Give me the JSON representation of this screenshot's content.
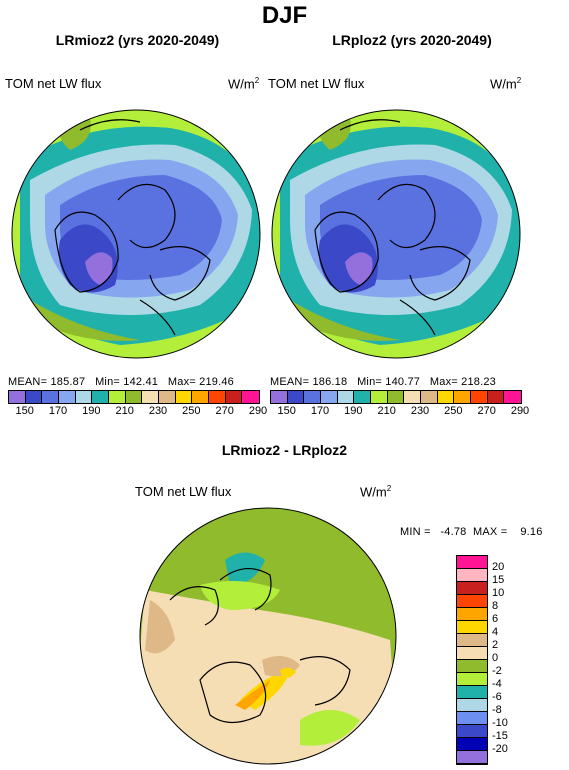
{
  "page_title": "DJF",
  "panels": [
    {
      "title": "LRmioz2 (yrs 2020-2049)",
      "variable": "TOM net LW flux",
      "units": "W/m",
      "units_sup": "2",
      "stats": "MEAN= 185.87   Min= 142.41   Max= 219.46"
    },
    {
      "title": "LRploz2 (yrs 2020-2049)",
      "variable": "TOM net LW flux",
      "units": "W/m",
      "units_sup": "2",
      "stats": "MEAN= 186.18   Min= 140.77   Max= 218.23"
    }
  ],
  "top_colorbar": {
    "colors": [
      "#9370db",
      "#3b49c9",
      "#5a72e0",
      "#86a6ef",
      "#aed8e6",
      "#20b2aa",
      "#b3ee3a",
      "#8fbb2d",
      "#f5deb3",
      "#deb887",
      "#ffd700",
      "#ffa500",
      "#ff4500",
      "#c8201e",
      "#ff1493"
    ],
    "labels": [
      "150",
      "170",
      "190",
      "210",
      "230",
      "250",
      "270",
      "290"
    ]
  },
  "diff_panel": {
    "title": "LRmioz2 - LRploz2",
    "variable": "TOM net LW flux",
    "units": "W/m",
    "units_sup": "2",
    "minmax": "MIN =   -4.78  MAX =    9.16"
  },
  "diff_colorbar": {
    "colors": [
      "#ff1493",
      "#ffb6c1",
      "#c8201e",
      "#ff4500",
      "#ffa500",
      "#ffd700",
      "#deb887",
      "#f5deb3",
      "#8fbb2d",
      "#b3ee3a",
      "#20b2aa",
      "#aed8e6",
      "#6d8ff0",
      "#3b49c9",
      "#0000b4",
      "#9370db"
    ],
    "labels": [
      "20",
      "15",
      "10",
      "8",
      "6",
      "4",
      "2",
      "0",
      "-2",
      "-4",
      "-6",
      "-8",
      "-10",
      "-15",
      "-20"
    ]
  }
}
